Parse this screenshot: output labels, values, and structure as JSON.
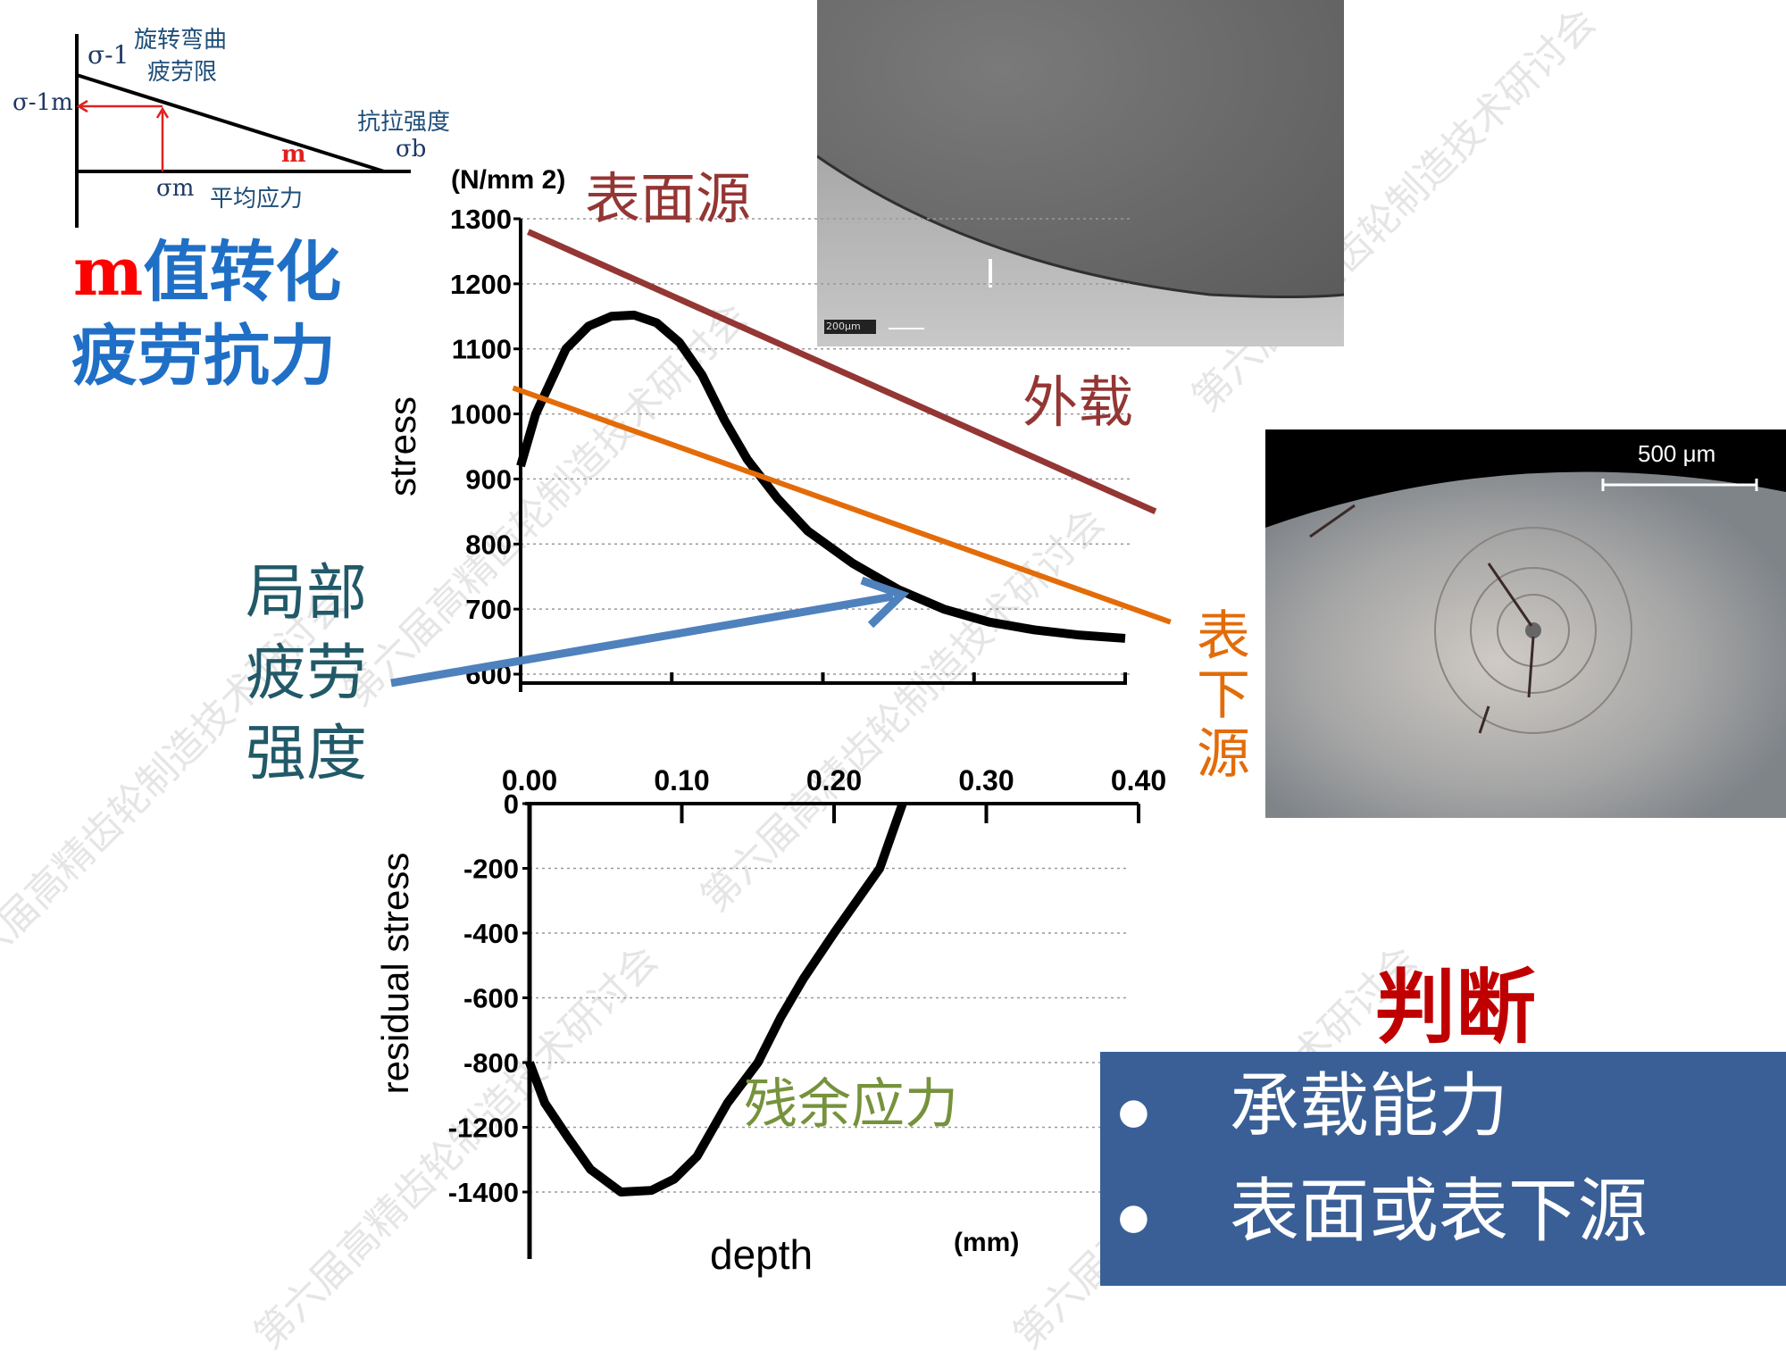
{
  "mini_diagram": {
    "sigma_minus1": "σ-1",
    "rotating_bending_limit_l1": "旋转弯曲",
    "rotating_bending_limit_l2": "疲劳限",
    "sigma_minus1_m": "σ-1m",
    "tensile_strength": "抗拉强度",
    "sigma_b": "σb",
    "m_label": "m",
    "sigma_m": "σm",
    "mean_stress": "平均应力"
  },
  "left_text": {
    "m_letter": "m",
    "line1_rest": "值转化",
    "line2": "疲劳抗力",
    "local_l1": "局部",
    "local_l2": "疲劳",
    "local_l3": "强度"
  },
  "labels": {
    "surface_source": "表面源",
    "external_load": "外载",
    "subsurface_l1": "表",
    "subsurface_l2": "下",
    "subsurface_l3": "源",
    "residual_stress_cn": "残余应力",
    "judge": "判断"
  },
  "photos": {
    "sem_scale": "200μm",
    "optical_scale": "500 μm"
  },
  "summary_box": {
    "items": [
      "承载能力",
      "表面或表下源"
    ],
    "bg": "#3a5f96"
  },
  "watermark": "第六届高精齿轮制造技术研讨会",
  "colors": {
    "external_load": "#943634",
    "subsurface": "#e36c09",
    "arrow": "#4f81bd",
    "blue_text": "#1f6fc6",
    "red": "#c00000"
  },
  "chart_data": [
    {
      "type": "line",
      "unit_label": "(N/mm 2)",
      "ylabel": "stress",
      "yticks": [
        1300,
        1200,
        1100,
        1000,
        900,
        800,
        700,
        600
      ],
      "ytick_labels": [
        "1300",
        "1200",
        "1100",
        "1000",
        "900",
        "800",
        "700",
        "600"
      ],
      "ylim": [
        600,
        1300
      ],
      "xlim": [
        0,
        0.4
      ],
      "series": [
        {
          "name": "stress",
          "x": [
            0,
            0.01,
            0.02,
            0.03,
            0.045,
            0.06,
            0.075,
            0.09,
            0.105,
            0.12,
            0.135,
            0.15,
            0.17,
            0.19,
            0.22,
            0.25,
            0.28,
            0.31,
            0.34,
            0.37,
            0.4
          ],
          "y": [
            920,
            1000,
            1050,
            1100,
            1135,
            1150,
            1152,
            1140,
            1110,
            1060,
            990,
            930,
            870,
            820,
            770,
            730,
            700,
            680,
            668,
            660,
            655
          ]
        },
        {
          "name": "外载",
          "x": [
            0.005,
            0.42
          ],
          "y": [
            1280,
            850
          ]
        },
        {
          "name": "表下源",
          "x": [
            -0.005,
            0.43
          ],
          "y": [
            1040,
            680
          ]
        }
      ]
    },
    {
      "type": "line",
      "xlabel": "depth",
      "xunit": "(mm)",
      "ylabel": "residual stress",
      "xticks": [
        0,
        0.1,
        0.2,
        0.3,
        0.4
      ],
      "xtick_labels": [
        "0.00",
        "0.10",
        "0.20",
        "0.30",
        "0.40"
      ],
      "yticks": [
        0,
        -200,
        -400,
        -600,
        -800,
        -1200,
        -1400
      ],
      "ytick_labels": [
        "0",
        "-200",
        "-400",
        "-600",
        "-800",
        "-1200",
        "-1400"
      ],
      "xlim": [
        0,
        0.4
      ],
      "series": [
        {
          "name": "residual stress",
          "x": [
            0,
            0.01,
            0.025,
            0.04,
            0.06,
            0.08,
            0.095,
            0.11,
            0.13,
            0.15,
            0.165,
            0.18,
            0.2,
            0.215,
            0.23,
            0.245
          ],
          "y": [
            -800,
            -1050,
            -1230,
            -1330,
            -1400,
            -1395,
            -1360,
            -1290,
            -1050,
            -800,
            -660,
            -540,
            -400,
            -300,
            -200,
            0
          ]
        }
      ]
    }
  ]
}
